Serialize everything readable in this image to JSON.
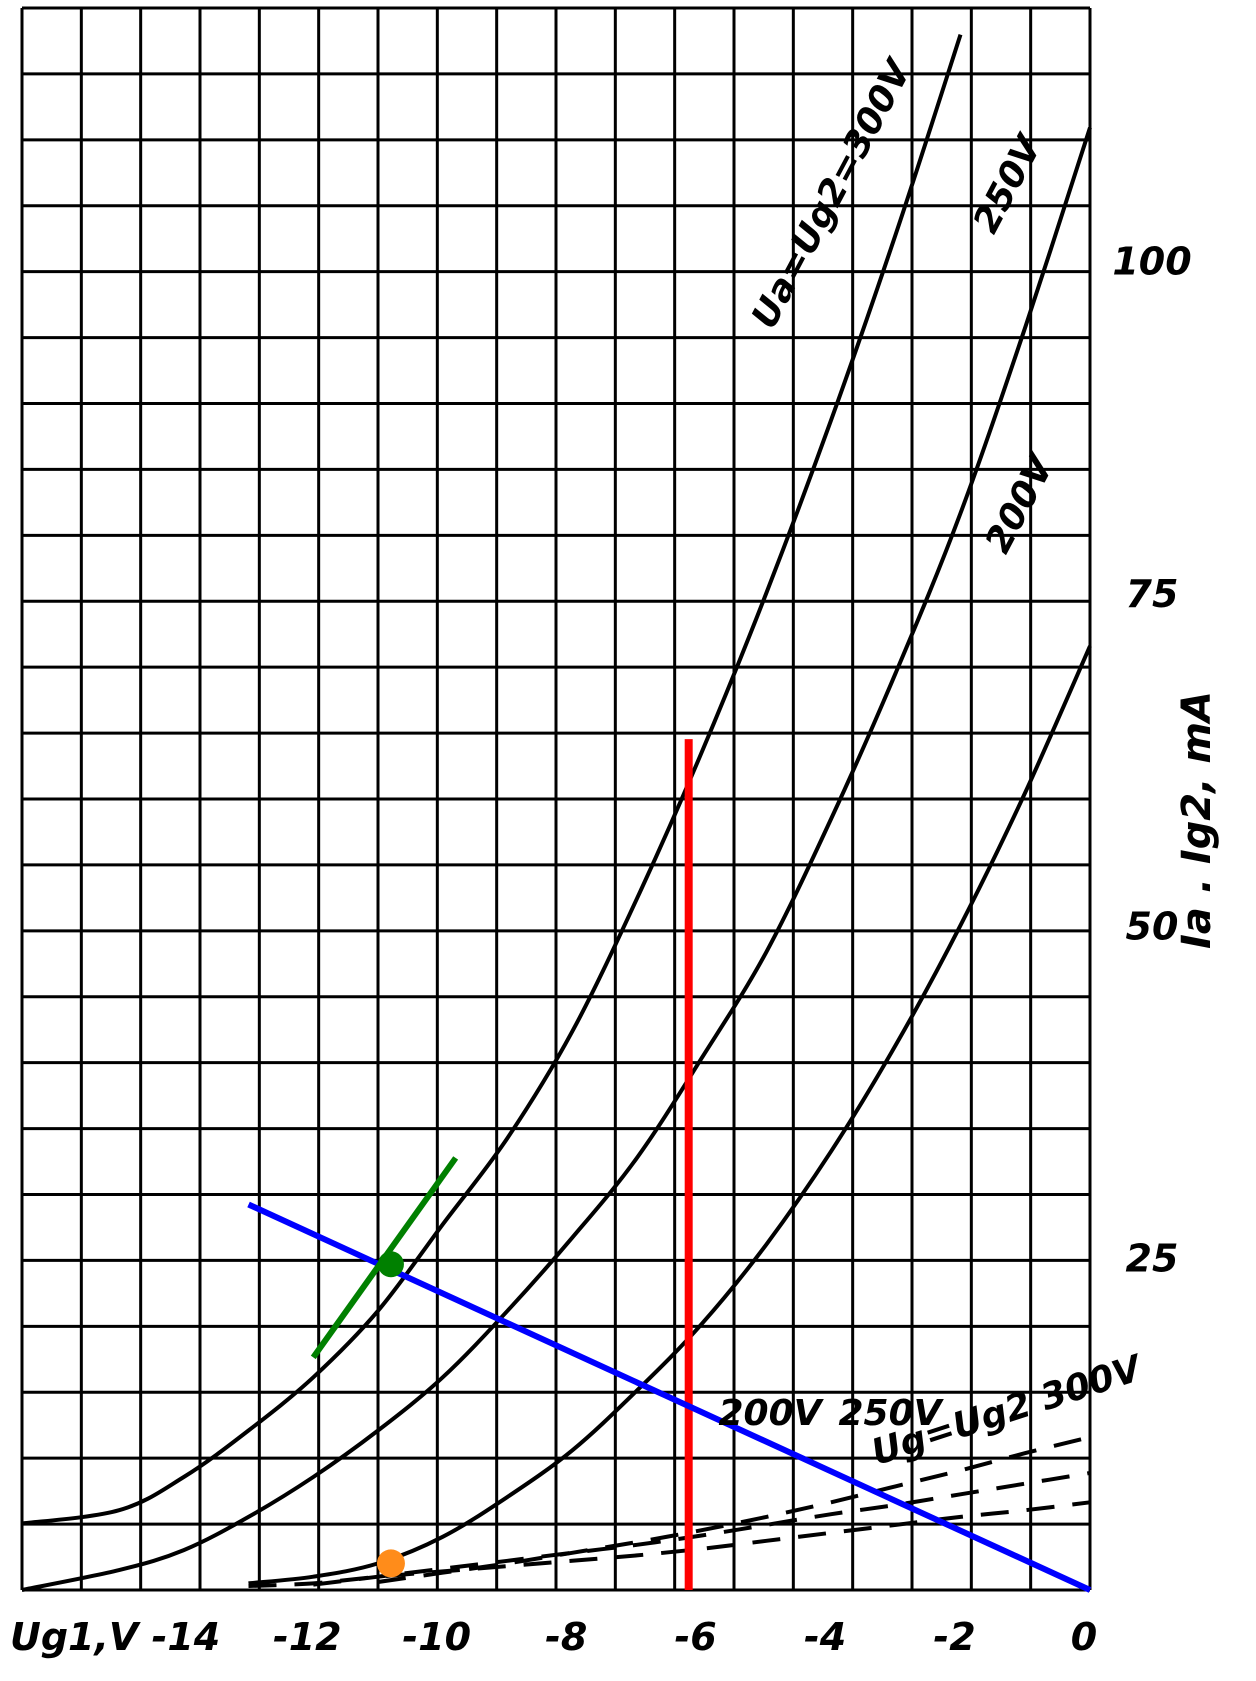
{
  "chart_data": {
    "type": "line",
    "title": "",
    "xlabel": "Ug1,V",
    "ylabel": "Ia . Ig2, mA",
    "xlim": [
      -16.5,
      0
    ],
    "ylim": [
      0,
      119
    ],
    "grid": true,
    "x_ticks": [
      {
        "value": -14,
        "label": "-14"
      },
      {
        "value": -12,
        "label": "-12"
      },
      {
        "value": -10,
        "label": "-10"
      },
      {
        "value": -8,
        "label": "-8"
      },
      {
        "value": -6,
        "label": "-6"
      },
      {
        "value": -4,
        "label": "-4"
      },
      {
        "value": -2,
        "label": "-2"
      },
      {
        "value": 0,
        "label": "0"
      }
    ],
    "y_ticks": [
      {
        "value": 25,
        "label": "25"
      },
      {
        "value": 50,
        "label": "50"
      },
      {
        "value": 75,
        "label": "75"
      },
      {
        "value": 100,
        "label": "100"
      }
    ],
    "series": [
      {
        "name": "Ua=Ug2=300V",
        "style": "solid",
        "x": [
          -16.5,
          -15,
          -14,
          -13,
          -12,
          -11,
          -10,
          -9,
          -8,
          -7,
          -6,
          -5,
          -4,
          -3,
          -2
        ],
        "y": [
          5,
          6,
          8.5,
          12,
          16,
          21,
          27.5,
          34,
          42,
          52,
          63,
          75,
          88,
          102,
          117
        ]
      },
      {
        "name": "250V",
        "style": "solid",
        "x": [
          -16.5,
          -15,
          -14,
          -13,
          -12,
          -11,
          -10,
          -9,
          -8,
          -7,
          -6,
          -5,
          -4,
          -3,
          -2,
          -1,
          0
        ],
        "y": [
          0,
          1.5,
          3,
          5.5,
          8.5,
          12,
          16,
          21,
          26.5,
          32.5,
          40,
          48,
          58,
          69,
          81,
          95,
          110
        ]
      },
      {
        "name": "200V",
        "style": "solid",
        "x": [
          -13,
          -12,
          -11,
          -10,
          -9,
          -8,
          -7,
          -6,
          -5,
          -4,
          -3,
          -2,
          -1,
          0
        ],
        "y": [
          0.5,
          1,
          2,
          4,
          7,
          10.5,
          15,
          20,
          26,
          33,
          41,
          50,
          60,
          71
        ]
      },
      {
        "name": "Ig2 200V",
        "label": "200V",
        "style": "dashed",
        "x": [
          -13,
          -12,
          -11,
          -10,
          -9,
          -8,
          -7,
          -6,
          -5,
          -4,
          -3,
          -2,
          -1,
          0
        ],
        "y": [
          0.3,
          0.5,
          1,
          1.4,
          1.8,
          2.2,
          2.6,
          3.1,
          3.7,
          4.3,
          4.9,
          5.5,
          6,
          6.6
        ]
      },
      {
        "name": "Ig2 250V",
        "label": "250V",
        "style": "dashed",
        "x": [
          -12,
          -11,
          -10,
          -9,
          -8,
          -7,
          -6,
          -5,
          -4,
          -3,
          -2,
          -1,
          0
        ],
        "y": [
          0.4,
          1,
          1.6,
          2.2,
          2.8,
          3.4,
          4.1,
          4.9,
          5.7,
          6.4,
          7.2,
          8,
          8.8
        ]
      },
      {
        "name": "Ug=Ug2 300V",
        "label": "Ug=Ug2 300V",
        "style": "dashed",
        "x": [
          -11,
          -10,
          -9,
          -8,
          -7,
          -6,
          -5,
          -4,
          -3,
          -2,
          -1,
          0
        ],
        "y": [
          0.6,
          1.3,
          2,
          2.8,
          3.6,
          4.5,
          5.5,
          6.6,
          7.8,
          9,
          10.3,
          11.5
        ]
      }
    ],
    "annotations": {
      "red_line": {
        "x": -6.2,
        "y_from": 0,
        "y_to": 64,
        "color": "#ff0000"
      },
      "blue_line": {
        "x1": -13,
        "y1": 29,
        "x2": 0,
        "y2": 0,
        "color": "#0000ff"
      },
      "green_tangent": {
        "x1": -12,
        "y1": 17.5,
        "x2": -9.8,
        "y2": 32.5,
        "color": "#008000"
      },
      "green_point": {
        "x": -10.8,
        "y": 24.5,
        "color": "#008000"
      },
      "orange_point": {
        "x": -10.8,
        "y": 2,
        "color": "#ff8c1a"
      }
    }
  }
}
